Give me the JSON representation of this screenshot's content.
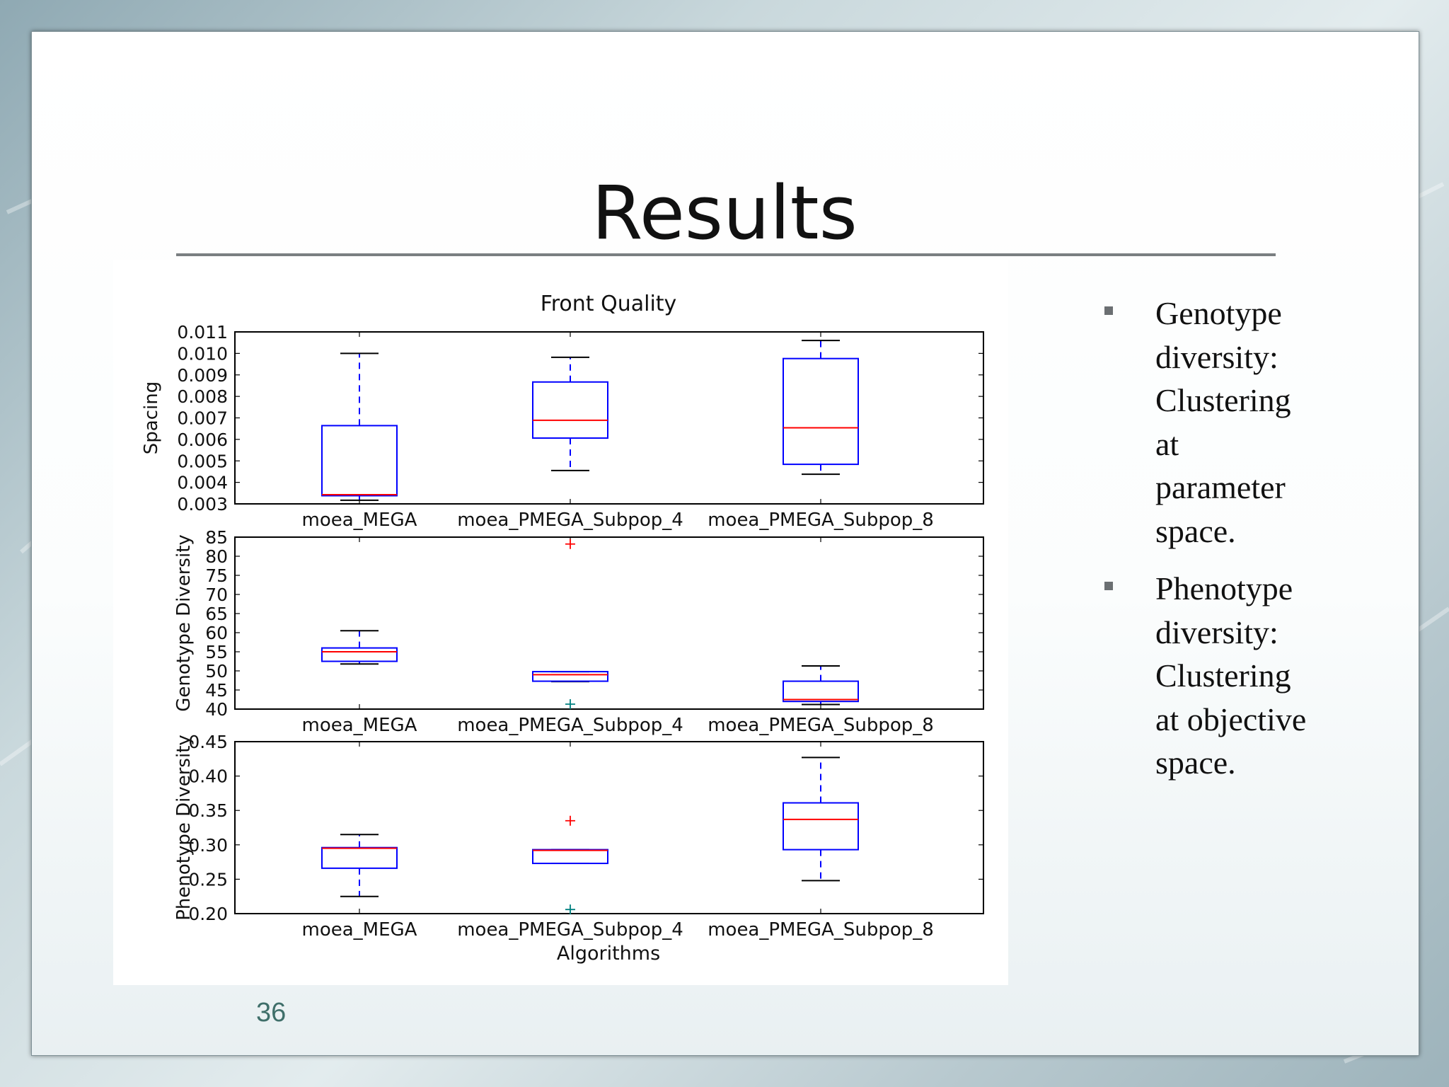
{
  "slide": {
    "title": "Results",
    "page_number": "36",
    "bullets": [
      {
        "text": "Genotype diversity: Clustering at parameter space.",
        "lines": [
          "Genotype",
          "diversity:",
          "Clustering",
          "at",
          "parameter",
          "space."
        ]
      },
      {
        "text": "Phenotype diversity: Clustering at objective space.",
        "lines": [
          "Phenotype",
          "diversity:",
          "Clustering",
          "at objective",
          "space."
        ]
      }
    ]
  },
  "chart_data": {
    "type": "box",
    "title": "Front Quality",
    "xlabel": "Algorithms",
    "categories": [
      "moea_MEGA",
      "moea_PMEGA_Subpop_4",
      "moea_PMEGA_Subpop_8"
    ],
    "colors": {
      "box": "#0000ff",
      "median": "#ff0000",
      "whisker_cap": "#000000",
      "outlier": "#ff0000",
      "outlier_low": "#008080"
    },
    "grid": false,
    "legend": "none",
    "panels": [
      {
        "ylabel": "Spacing",
        "ylim": [
          0.003,
          0.011
        ],
        "yticks": [
          "0.003",
          "0.004",
          "0.005",
          "0.006",
          "0.007",
          "0.008",
          "0.009",
          "0.010",
          "0.011"
        ],
        "boxes": [
          {
            "whisker_low": 0.00317,
            "q1": 0.00338,
            "median": 0.00343,
            "q3": 0.00664,
            "whisker_high": 0.01,
            "outliers": []
          },
          {
            "whisker_low": 0.00455,
            "q1": 0.00606,
            "median": 0.00689,
            "q3": 0.00867,
            "whisker_high": 0.00982,
            "outliers": []
          },
          {
            "whisker_low": 0.00438,
            "q1": 0.00484,
            "median": 0.00654,
            "q3": 0.00976,
            "whisker_high": 0.0106,
            "outliers": []
          }
        ]
      },
      {
        "ylabel": "Genotype Diversity",
        "ylim": [
          40,
          85
        ],
        "yticks": [
          "40",
          "45",
          "50",
          "55",
          "60",
          "65",
          "70",
          "75",
          "80",
          "85"
        ],
        "boxes": [
          {
            "whisker_low": 51.8,
            "q1": 52.5,
            "median": 55.0,
            "q3": 56.0,
            "whisker_high": 60.5,
            "outliers": []
          },
          {
            "whisker_low": 47.2,
            "q1": 47.3,
            "median": 49.0,
            "q3": 49.8,
            "whisker_high": 49.8,
            "outliers": [
              83.2,
              41.3
            ]
          },
          {
            "whisker_low": 41.2,
            "q1": 42.0,
            "median": 42.5,
            "q3": 47.3,
            "whisker_high": 51.3,
            "outliers": []
          }
        ]
      },
      {
        "ylabel": "Phenotype Diversity",
        "ylim": [
          0.2,
          0.45
        ],
        "yticks": [
          "0.20",
          "0.25",
          "0.30",
          "0.35",
          "0.40",
          "0.45"
        ],
        "boxes": [
          {
            "whisker_low": 0.225,
            "q1": 0.266,
            "median": 0.295,
            "q3": 0.296,
            "whisker_high": 0.315,
            "outliers": []
          },
          {
            "whisker_low": 0.273,
            "q1": 0.273,
            "median": 0.292,
            "q3": 0.293,
            "whisker_high": 0.293,
            "outliers": [
              0.335,
              0.206
            ]
          },
          {
            "whisker_low": 0.248,
            "q1": 0.293,
            "median": 0.337,
            "q3": 0.361,
            "whisker_high": 0.427,
            "outliers": []
          }
        ]
      }
    ]
  }
}
